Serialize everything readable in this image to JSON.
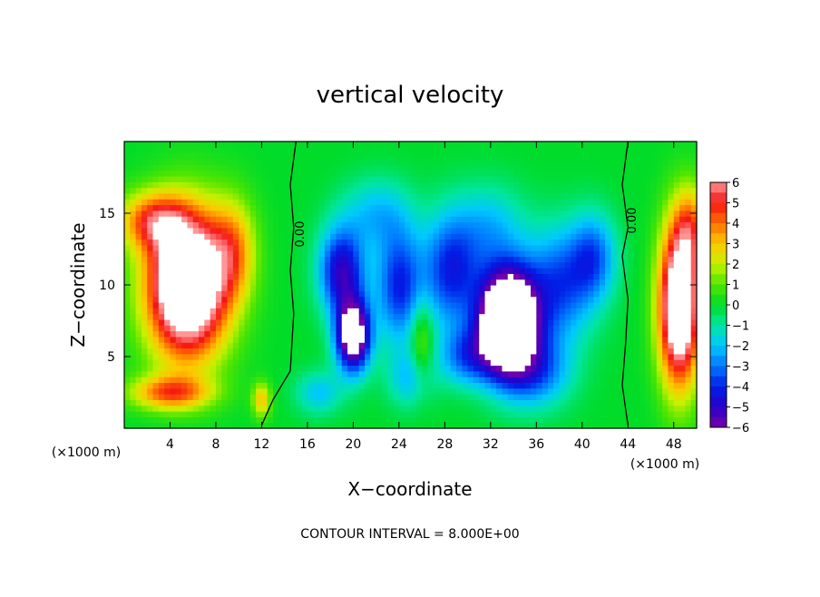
{
  "chart_data": {
    "type": "heatmap",
    "title": "vertical velocity",
    "xlabel": "X−coordinate",
    "ylabel": "Z−coordinate",
    "x_unit": "(×1000 m)",
    "z_unit": "(×1000 m)",
    "xlim": [
      0,
      50
    ],
    "ylim": [
      0,
      20
    ],
    "x_ticks": [
      4,
      8,
      12,
      16,
      20,
      24,
      28,
      32,
      36,
      40,
      44,
      48
    ],
    "y_ticks": [
      5,
      10,
      15
    ],
    "colorbar": {
      "ticks": [
        "6",
        "5",
        "4",
        "3",
        "2",
        "1",
        "0",
        "−1",
        "−2",
        "−3",
        "−4",
        "−5",
        "−6"
      ],
      "range": [
        -6,
        6
      ]
    },
    "contour_label": "0.00",
    "contour_interval_text": "CONTOUR INTERVAL = 8.000E+00",
    "features": [
      {
        "x": 5.5,
        "z": 10,
        "sx": 3.5,
        "sz": 5.0,
        "amp": 10
      },
      {
        "x": 9.5,
        "z": 12.5,
        "sx": 2.0,
        "sz": 3.5,
        "amp": 3
      },
      {
        "x": 2.5,
        "z": 14.5,
        "sx": 3.0,
        "sz": 2.0,
        "amp": 4
      },
      {
        "x": 4.0,
        "z": 2.5,
        "sx": 3.5,
        "sz": 1.2,
        "amp": 4
      },
      {
        "x": 12,
        "z": 2.0,
        "sx": 0.8,
        "sz": 1.2,
        "amp": 3
      },
      {
        "x": 48.5,
        "z": 8.5,
        "sx": 1.8,
        "sz": 5.5,
        "amp": 9
      },
      {
        "x": 49.5,
        "z": 14,
        "sx": 1.5,
        "sz": 3.0,
        "amp": 3
      },
      {
        "x": 33.5,
        "z": 7.5,
        "sx": 2.5,
        "sz": 3.5,
        "amp": -12
      },
      {
        "x": 20,
        "z": 6.5,
        "sx": 1.5,
        "sz": 2.5,
        "amp": -8
      },
      {
        "x": 19,
        "z": 11,
        "sx": 2.0,
        "sz": 3.0,
        "amp": -5
      },
      {
        "x": 24,
        "z": 10,
        "sx": 2.0,
        "sz": 4.0,
        "amp": -4
      },
      {
        "x": 28.5,
        "z": 11,
        "sx": 2.5,
        "sz": 4.0,
        "amp": -4
      },
      {
        "x": 38,
        "z": 10,
        "sx": 3.0,
        "sz": 4.0,
        "amp": -3.5
      },
      {
        "x": 41,
        "z": 12,
        "sx": 2.0,
        "sz": 3.0,
        "amp": -3
      },
      {
        "x": 30,
        "z": 5,
        "sx": 2.5,
        "sz": 2.0,
        "amp": -3
      },
      {
        "x": 17,
        "z": 2.5,
        "sx": 2.0,
        "sz": 1.5,
        "amp": -2
      },
      {
        "x": 25,
        "z": 3.5,
        "sx": 2.0,
        "sz": 2.0,
        "amp": -2
      },
      {
        "x": 36,
        "z": 4,
        "sx": 3.0,
        "sz": 2.5,
        "amp": -3
      },
      {
        "x": 22,
        "z": 15,
        "sx": 3.0,
        "sz": 2.5,
        "amp": -2
      },
      {
        "x": 32,
        "z": 14,
        "sx": 3.0,
        "sz": 3.0,
        "amp": -2
      },
      {
        "x": 26,
        "z": 6,
        "sx": 1.0,
        "sz": 3.0,
        "amp": 2
      }
    ]
  }
}
